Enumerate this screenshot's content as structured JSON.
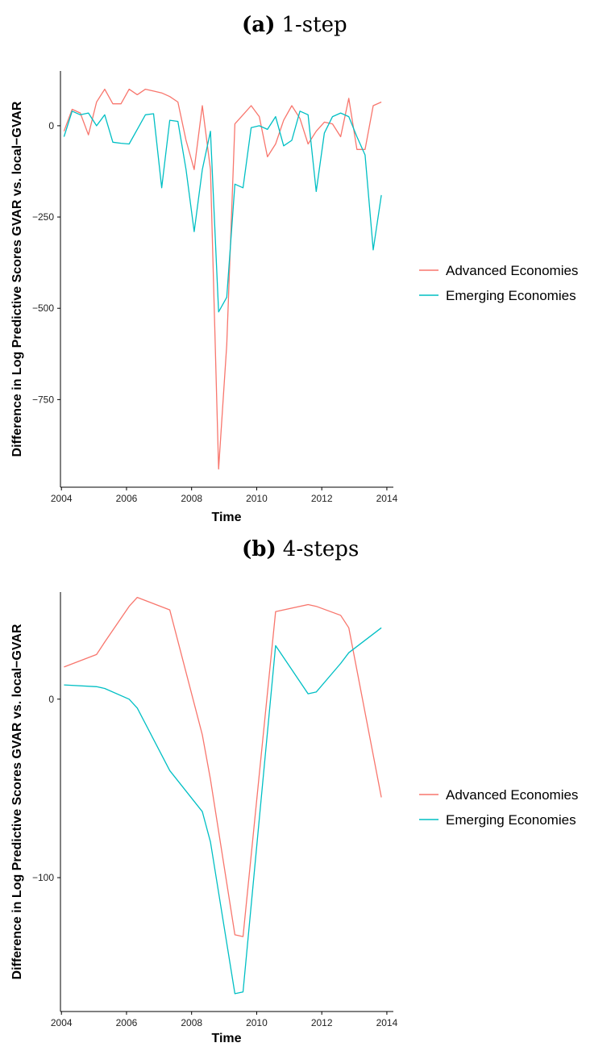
{
  "chart_data": [
    {
      "type": "line",
      "title_letter": "(a)",
      "title_rest": "1-step",
      "xlabel": "Time",
      "ylabel": "Difference in Log Predictive Scores GVAR vs. local−GVAR",
      "xlim": [
        2003.97,
        2014.2
      ],
      "ylim": [
        -990,
        150
      ],
      "xticks": [
        "2004",
        "2006",
        "2008",
        "2010",
        "2012",
        "2014"
      ],
      "xtick_values": [
        2004,
        2006,
        2008,
        2010,
        2012,
        2014
      ],
      "yticks": [
        "0",
        "−250",
        "−500",
        "−750"
      ],
      "ytick_values": [
        0,
        -250,
        -500,
        -750
      ],
      "legend_position": "right",
      "x": [
        2004.08,
        2004.33,
        2004.58,
        2004.83,
        2005.08,
        2005.33,
        2005.58,
        2005.83,
        2006.08,
        2006.33,
        2006.58,
        2006.83,
        2007.08,
        2007.33,
        2007.58,
        2007.83,
        2008.08,
        2008.33,
        2008.58,
        2008.83,
        2009.08,
        2009.33,
        2009.58,
        2009.83,
        2010.08,
        2010.33,
        2010.58,
        2010.83,
        2011.08,
        2011.33,
        2011.58,
        2011.83,
        2012.08,
        2012.33,
        2012.58,
        2012.83,
        2013.08,
        2013.33,
        2013.58,
        2013.83
      ],
      "series": [
        {
          "name": "Advanced Economies",
          "color": "#F8766D",
          "values": [
            -15,
            45,
            35,
            -25,
            65,
            100,
            60,
            60,
            100,
            85,
            100,
            95,
            90,
            80,
            65,
            -40,
            -120,
            55,
            -120,
            -940,
            -600,
            5,
            30,
            55,
            25,
            -85,
            -50,
            15,
            55,
            20,
            -50,
            -15,
            10,
            5,
            -30,
            75,
            -65,
            -65,
            55,
            65
          ]
        },
        {
          "name": "Emerging Economies",
          "color": "#00BFC4",
          "values": [
            -30,
            40,
            30,
            35,
            0,
            30,
            -45,
            -48,
            -50,
            -10,
            30,
            33,
            -170,
            15,
            12,
            -120,
            -290,
            -120,
            -15,
            -510,
            -470,
            -160,
            -170,
            -5,
            0,
            -10,
            25,
            -55,
            -40,
            40,
            30,
            -180,
            -20,
            25,
            35,
            25,
            -30,
            -80,
            -340,
            -190
          ]
        }
      ]
    },
    {
      "type": "line",
      "title_letter": "(b)",
      "title_rest": "4-steps",
      "xlabel": "Time",
      "ylabel": "Difference in Log Predictive Scores GVAR vs. local−GVAR",
      "xlim": [
        2003.97,
        2014.2
      ],
      "ylim": [
        -175,
        60
      ],
      "xticks": [
        "2004",
        "2006",
        "2008",
        "2010",
        "2012",
        "2014"
      ],
      "xtick_values": [
        2004,
        2006,
        2008,
        2010,
        2012,
        2014
      ],
      "yticks": [
        "0",
        "−100"
      ],
      "ytick_values": [
        0,
        -100
      ],
      "legend_position": "right",
      "x": [
        2004.08,
        2005.08,
        2005.33,
        2006.08,
        2006.33,
        2007.33,
        2008.33,
        2008.58,
        2009.33,
        2009.58,
        2010.58,
        2011.58,
        2011.83,
        2012.58,
        2012.83,
        2013.83
      ],
      "series": [
        {
          "name": "Advanced Economies",
          "color": "#F8766D",
          "values": [
            18,
            25,
            32,
            52,
            57,
            50,
            -20,
            -45,
            -132,
            -133,
            49,
            53,
            52,
            47,
            40,
            -55
          ]
        },
        {
          "name": "Emerging Economies",
          "color": "#00BFC4",
          "values": [
            8,
            7,
            6,
            0,
            -5,
            -40,
            -63,
            -80,
            -165,
            -164,
            30,
            3,
            4,
            20,
            26,
            40
          ]
        }
      ]
    }
  ],
  "legend": [
    {
      "label": "Advanced Economies",
      "color": "#F8766D"
    },
    {
      "label": "Emerging Economies",
      "color": "#00BFC4"
    }
  ]
}
